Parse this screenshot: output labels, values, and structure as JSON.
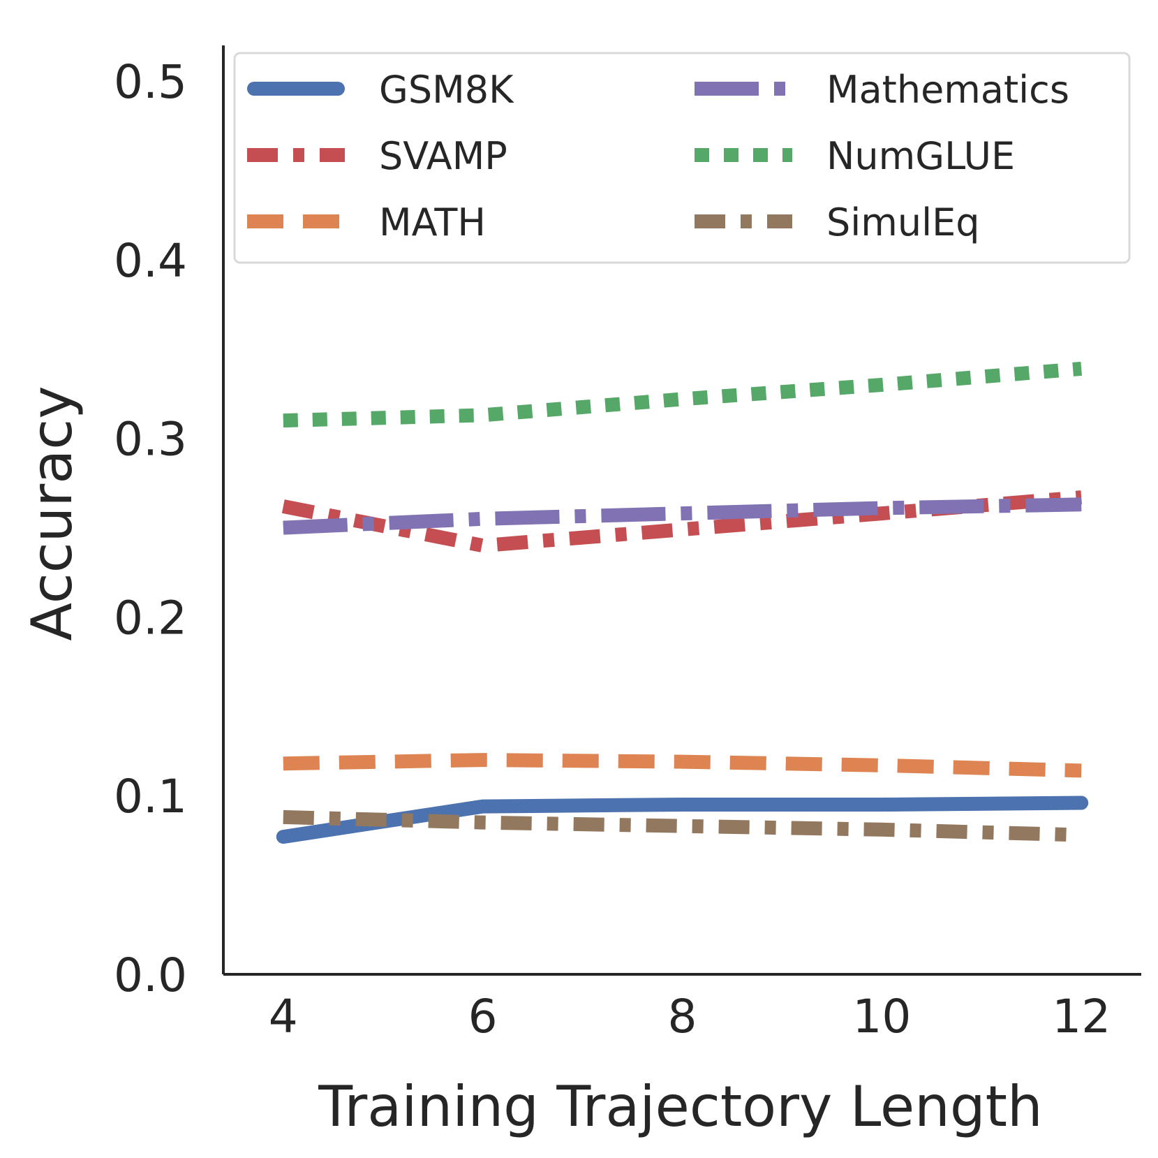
{
  "chart_data": {
    "type": "line",
    "xlabel": "Training Trajectory Length",
    "ylabel": "Accuracy",
    "x": [
      4,
      6,
      8,
      10,
      12
    ],
    "xticks": [
      "4",
      "6",
      "8",
      "10",
      "12"
    ],
    "xlim": [
      3.4,
      12.6
    ],
    "yticks": [
      "0.0",
      "0.1",
      "0.2",
      "0.3",
      "0.4",
      "0.5"
    ],
    "ylim": [
      0.0,
      0.52
    ],
    "grid": false,
    "legend_position": "top",
    "series": [
      {
        "name": "GSM8K",
        "color": "#4c72b0",
        "style": "solid",
        "values": [
          0.077,
          0.094,
          0.095,
          0.095,
          0.096
        ]
      },
      {
        "name": "SVAMP",
        "color": "#c44e52",
        "style": "dashdot",
        "values": [
          0.262,
          0.24,
          0.249,
          0.258,
          0.267
        ]
      },
      {
        "name": "MATH",
        "color": "#dd8452",
        "style": "dashed",
        "values": [
          0.118,
          0.12,
          0.119,
          0.117,
          0.114
        ]
      },
      {
        "name": "Mathematics",
        "color": "#8172b3",
        "style": "loosedash",
        "values": [
          0.25,
          0.255,
          0.258,
          0.261,
          0.263
        ]
      },
      {
        "name": "NumGLUE",
        "color": "#55a868",
        "style": "dotted",
        "values": [
          0.31,
          0.313,
          0.322,
          0.33,
          0.339
        ]
      },
      {
        "name": "SimulEq",
        "color": "#937860",
        "style": "dashdot",
        "values": [
          0.088,
          0.085,
          0.083,
          0.081,
          0.078
        ]
      }
    ]
  }
}
